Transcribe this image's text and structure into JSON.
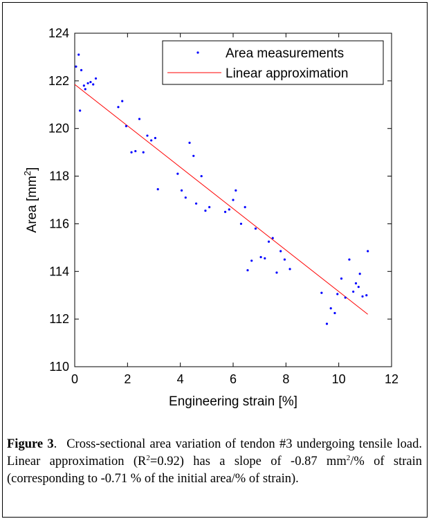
{
  "chart_data": {
    "type": "scatter",
    "xlabel": "Engineering strain [%]",
    "ylabel_base": "Area [mm",
    "ylabel_sup": "2",
    "ylabel_end": "]",
    "xlim": [
      0,
      12
    ],
    "ylim": [
      110,
      124
    ],
    "x_ticks": [
      "0",
      "2",
      "4",
      "6",
      "8",
      "10",
      "12"
    ],
    "y_ticks": [
      "110",
      "112",
      "114",
      "116",
      "118",
      "120",
      "122",
      "124"
    ],
    "grid": false,
    "legend_position": "top-right",
    "series": [
      {
        "name": "Area measurements",
        "kind": "scatter",
        "color": "#0000ff",
        "points": [
          [
            0.05,
            122.6
          ],
          [
            0.15,
            123.1
          ],
          [
            0.2,
            120.75
          ],
          [
            0.25,
            122.45
          ],
          [
            0.35,
            121.8
          ],
          [
            0.4,
            121.65
          ],
          [
            0.5,
            121.9
          ],
          [
            0.6,
            121.95
          ],
          [
            0.7,
            121.85
          ],
          [
            0.8,
            122.1
          ],
          [
            1.65,
            120.9
          ],
          [
            1.8,
            121.15
          ],
          [
            1.95,
            120.1
          ],
          [
            2.15,
            119.0
          ],
          [
            2.3,
            119.05
          ],
          [
            2.45,
            120.4
          ],
          [
            2.6,
            119.0
          ],
          [
            2.75,
            119.7
          ],
          [
            2.9,
            119.5
          ],
          [
            3.05,
            119.6
          ],
          [
            3.15,
            117.45
          ],
          [
            3.9,
            118.1
          ],
          [
            4.05,
            117.4
          ],
          [
            4.2,
            117.1
          ],
          [
            4.35,
            119.4
          ],
          [
            4.5,
            118.85
          ],
          [
            4.6,
            116.85
          ],
          [
            4.8,
            118.0
          ],
          [
            4.95,
            116.55
          ],
          [
            5.1,
            116.7
          ],
          [
            5.7,
            116.5
          ],
          [
            5.85,
            116.6
          ],
          [
            6.0,
            117.0
          ],
          [
            6.1,
            117.4
          ],
          [
            6.3,
            116.0
          ],
          [
            6.45,
            116.7
          ],
          [
            6.55,
            114.05
          ],
          [
            6.7,
            114.45
          ],
          [
            6.85,
            115.8
          ],
          [
            7.05,
            114.6
          ],
          [
            7.2,
            114.55
          ],
          [
            7.35,
            115.25
          ],
          [
            7.5,
            115.4
          ],
          [
            7.65,
            113.95
          ],
          [
            7.8,
            114.85
          ],
          [
            7.95,
            114.5
          ],
          [
            8.15,
            114.1
          ],
          [
            9.35,
            113.1
          ],
          [
            9.55,
            111.8
          ],
          [
            9.7,
            112.45
          ],
          [
            9.85,
            112.25
          ],
          [
            9.95,
            113.05
          ],
          [
            10.1,
            113.7
          ],
          [
            10.25,
            112.9
          ],
          [
            10.4,
            114.5
          ],
          [
            10.55,
            113.15
          ],
          [
            10.65,
            113.5
          ],
          [
            10.75,
            113.35
          ],
          [
            10.8,
            113.9
          ],
          [
            10.9,
            112.95
          ],
          [
            11.05,
            113.0
          ],
          [
            11.1,
            114.85
          ]
        ]
      },
      {
        "name": "Linear approximation",
        "kind": "line",
        "color": "#ff0000",
        "x": [
          0.0,
          11.1
        ],
        "y": [
          121.85,
          112.2
        ]
      }
    ]
  },
  "caption": {
    "label": "Figure 3",
    "period": ".",
    "text_part1": "Cross-sectional area variation of tendon #3 undergoing tensile load. Linear approximation (R",
    "r_sup": "2",
    "text_part2": "=0.92) has a slope of -0.87 mm",
    "mm_sup": "2",
    "text_part3": "/% of strain (corresponding to -0.71 % of the initial area/% of strain)."
  }
}
